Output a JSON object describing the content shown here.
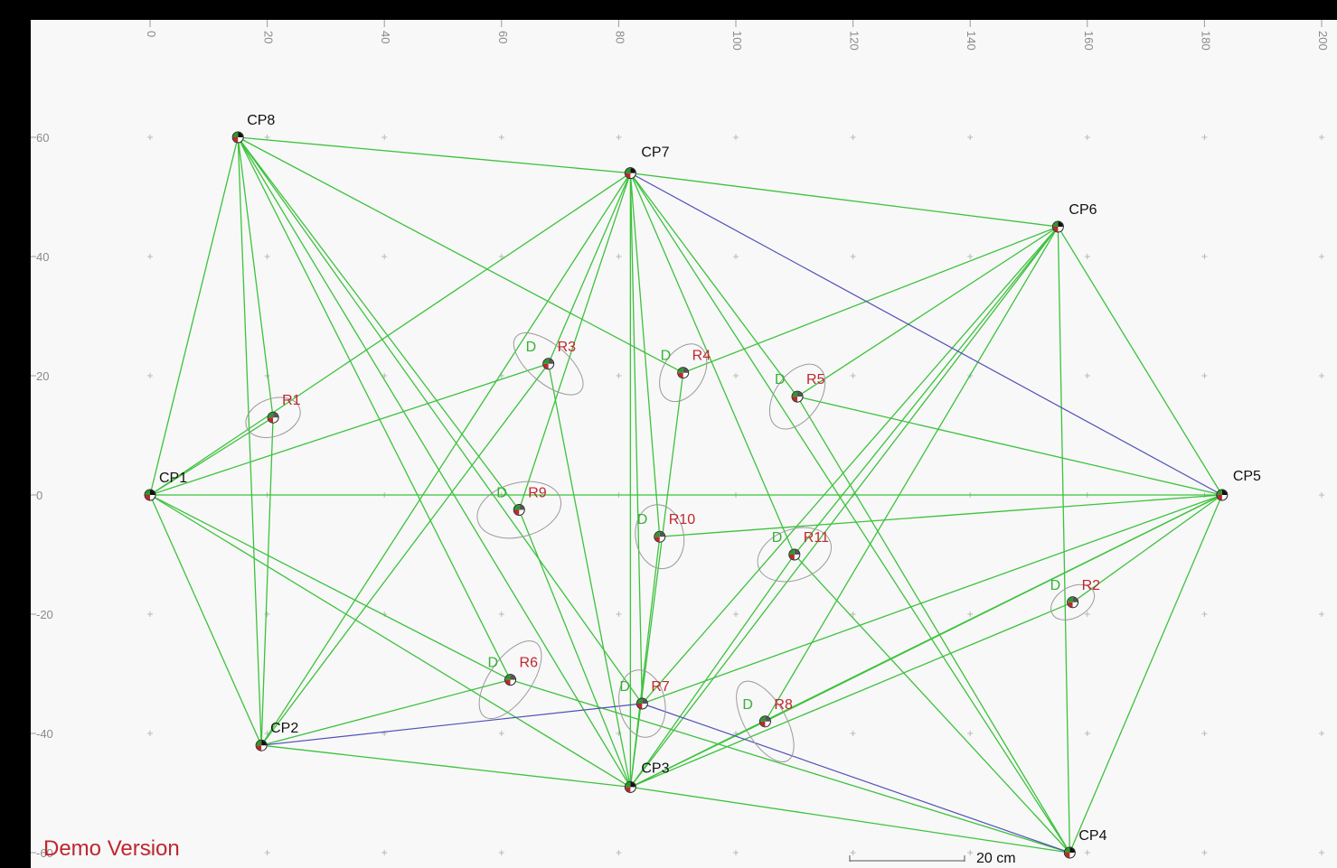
{
  "watermark": "Demo Version",
  "scale_bar": {
    "label": "20 cm",
    "length_cm": 20
  },
  "axes": {
    "x_ticks": [
      0,
      20,
      40,
      60,
      80,
      100,
      120,
      140,
      160,
      180,
      200
    ],
    "y_ticks": [
      60,
      40,
      20,
      0,
      -20,
      -40,
      -60
    ]
  },
  "colors": {
    "observation_line": "#3cc23c",
    "highlight_line": "#5050b8",
    "ellipse": "#9a9a9a",
    "grid_cross": "#b8b8b8",
    "label_cp": "#111111",
    "label_r": "#c0262d",
    "label_d": "#34b233"
  },
  "control_points": [
    {
      "id": "CP1",
      "label": "CP1",
      "x": 0,
      "y": 0
    },
    {
      "id": "CP2",
      "label": "CP2",
      "x": 19,
      "y": -42
    },
    {
      "id": "CP3",
      "label": "CP3",
      "x": 82,
      "y": -49
    },
    {
      "id": "CP4",
      "label": "CP4",
      "x": 157,
      "y": -60
    },
    {
      "id": "CP5",
      "label": "CP5",
      "x": 183,
      "y": 0
    },
    {
      "id": "CP6",
      "label": "CP6",
      "x": 155,
      "y": 45
    },
    {
      "id": "CP7",
      "label": "CP7",
      "x": 82,
      "y": 54
    },
    {
      "id": "CP8",
      "label": "CP8",
      "x": 15,
      "y": 60
    }
  ],
  "reference_points": [
    {
      "id": "R1",
      "label": "R1",
      "d": "",
      "x": 21,
      "y": 13,
      "ellipse": {
        "rx": 4.8,
        "ry": 3.2,
        "angle": -20
      }
    },
    {
      "id": "R2",
      "label": "R2",
      "d": "D",
      "x": 157.5,
      "y": -18,
      "ellipse": {
        "rx": 4.0,
        "ry": 2.6,
        "angle": -30
      }
    },
    {
      "id": "R3",
      "label": "R3",
      "d": "D",
      "x": 68,
      "y": 22,
      "ellipse": {
        "rx": 7.2,
        "ry": 3.3,
        "angle": 40
      }
    },
    {
      "id": "R4",
      "label": "R4",
      "d": "D",
      "x": 91,
      "y": 20.5,
      "ellipse": {
        "rx": 5.3,
        "ry": 3.5,
        "angle": -60
      }
    },
    {
      "id": "R5",
      "label": "R5",
      "d": "D",
      "x": 110.5,
      "y": 16.5,
      "ellipse": {
        "rx": 6.2,
        "ry": 3.8,
        "angle": -55
      }
    },
    {
      "id": "R6",
      "label": "R6",
      "d": "D",
      "x": 61.5,
      "y": -31,
      "ellipse": {
        "rx": 7.7,
        "ry": 3.6,
        "angle": -55
      }
    },
    {
      "id": "R7",
      "label": "R7",
      "d": "D",
      "x": 84,
      "y": -35,
      "ellipse": {
        "rx": 5.8,
        "ry": 3.9,
        "angle": 80
      }
    },
    {
      "id": "R8",
      "label": "R8",
      "d": "D",
      "x": 105,
      "y": -38,
      "ellipse": {
        "rx": 7.7,
        "ry": 3.5,
        "angle": 60
      }
    },
    {
      "id": "R9",
      "label": "R9",
      "d": "D",
      "x": 63,
      "y": -2.5,
      "ellipse": {
        "rx": 7.3,
        "ry": 4.6,
        "angle": -15
      }
    },
    {
      "id": "R10",
      "label": "R10",
      "d": "D",
      "x": 87,
      "y": -7,
      "ellipse": {
        "rx": 5.5,
        "ry": 4.1,
        "angle": 80
      }
    },
    {
      "id": "R11",
      "label": "R11",
      "d": "D",
      "x": 110,
      "y": -10,
      "ellipse": {
        "rx": 6.5,
        "ry": 4.3,
        "angle": -20
      }
    }
  ],
  "observations": [
    [
      "CP8",
      "CP7"
    ],
    [
      "CP7",
      "CP6"
    ],
    [
      "CP6",
      "CP5"
    ],
    [
      "CP5",
      "CP4"
    ],
    [
      "CP4",
      "CP3"
    ],
    [
      "CP3",
      "CP2"
    ],
    [
      "CP2",
      "CP1"
    ],
    [
      "CP1",
      "CP8"
    ],
    [
      "CP1",
      "CP5"
    ],
    [
      "CP8",
      "CP2"
    ],
    [
      "CP8",
      "R1"
    ],
    [
      "CP8",
      "R4"
    ],
    [
      "CP8",
      "R6"
    ],
    [
      "CP8",
      "R7"
    ],
    [
      "CP8",
      "CP3"
    ],
    [
      "CP8",
      "R9"
    ],
    [
      "CP1",
      "R1"
    ],
    [
      "CP1",
      "R3"
    ],
    [
      "CP1",
      "CP7"
    ],
    [
      "CP1",
      "R6"
    ],
    [
      "CP1",
      "CP3"
    ],
    [
      "CP2",
      "R1"
    ],
    [
      "CP2",
      "CP7"
    ],
    [
      "CP2",
      "R3"
    ],
    [
      "CP2",
      "R6"
    ],
    [
      "CP3",
      "CP7"
    ],
    [
      "CP3",
      "R9"
    ],
    [
      "CP3",
      "R3"
    ],
    [
      "CP3",
      "R10"
    ],
    [
      "CP3",
      "R4"
    ],
    [
      "CP3",
      "R11"
    ],
    [
      "CP3",
      "R8"
    ],
    [
      "CP3",
      "CP5"
    ],
    [
      "CP3",
      "R2"
    ],
    [
      "CP3",
      "CP6"
    ],
    [
      "CP7",
      "R7"
    ],
    [
      "CP7",
      "R10"
    ],
    [
      "CP7",
      "R11"
    ],
    [
      "CP7",
      "R5"
    ],
    [
      "CP7",
      "CP4"
    ],
    [
      "CP7",
      "R3"
    ],
    [
      "CP7",
      "R9"
    ],
    [
      "CP6",
      "R4"
    ],
    [
      "CP6",
      "R5"
    ],
    [
      "CP6",
      "R11"
    ],
    [
      "CP6",
      "R8"
    ],
    [
      "CP6",
      "CP4"
    ],
    [
      "CP6",
      "R7"
    ],
    [
      "CP5",
      "R5"
    ],
    [
      "CP5",
      "R2"
    ],
    [
      "CP5",
      "R10"
    ],
    [
      "CP5",
      "R8"
    ],
    [
      "CP5",
      "R7"
    ],
    [
      "CP4",
      "R5"
    ],
    [
      "CP4",
      "R6"
    ],
    [
      "CP4",
      "R11"
    ]
  ],
  "highlighted_observations": [
    [
      "CP7",
      "CP5"
    ],
    [
      "CP2",
      "R7"
    ],
    [
      "R7",
      "CP4"
    ]
  ]
}
